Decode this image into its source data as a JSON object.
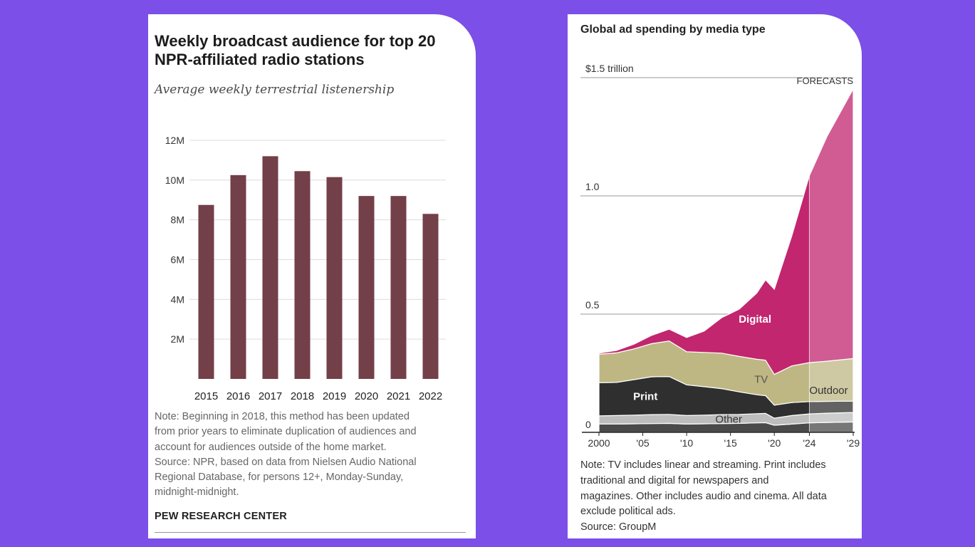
{
  "left_card": {
    "title": "Weekly broadcast audience for top 20 NPR-affiliated radio stations",
    "title_lines": [
      "Weekly broadcast audience for top 20",
      "NPR-affiliated radio stations"
    ],
    "subtitle": "Average weekly terrestrial listenership",
    "note_lines": [
      "Note: Beginning in 2018, this method has been updated",
      "from prior years to eliminate duplication of audiences and",
      "account for audiences outside of the home market.",
      "Source: NPR, based on data from Nielsen Audio National",
      "Regional Database, for persons 12+, Monday-Sunday,",
      "midnight-midnight."
    ],
    "brand": "PEW RESEARCH CENTER"
  },
  "right_card": {
    "title": "Global ad spending by media type",
    "note_lines": [
      "Note: TV includes linear and streaming. Print includes",
      "traditional and digital for newspapers and",
      "magazines. Other includes audio and cinema. All data",
      "exclude political ads.",
      "Source: GroupM"
    ]
  },
  "chart_data": [
    {
      "type": "bar",
      "categories": [
        "2015",
        "2016",
        "2017",
        "2018",
        "2019",
        "2020",
        "2021",
        "2022"
      ],
      "values": [
        8.75,
        10.25,
        11.2,
        10.45,
        10.15,
        9.2,
        9.2,
        8.3
      ],
      "ylim": [
        0,
        12
      ],
      "yticks": [
        2,
        4,
        6,
        8,
        10,
        12
      ],
      "ytick_labels": [
        "2M",
        "4M",
        "6M",
        "8M",
        "10M",
        "12M"
      ],
      "grid": true,
      "bar_color": "#733f48"
    },
    {
      "type": "area",
      "stacked": true,
      "x": [
        2000,
        2002,
        2004,
        2006,
        2008,
        2010,
        2012,
        2014,
        2016,
        2018,
        2019,
        2020,
        2022,
        2024,
        2026,
        2029
      ],
      "ylim": [
        0,
        1.5
      ],
      "yticks": [
        0,
        0.5,
        1.0,
        1.5
      ],
      "ytick_labels": [
        "0",
        "0.5",
        "1.0",
        "$1.5 trillion"
      ],
      "xtick_values": [
        2000,
        2005,
        2010,
        2015,
        2020,
        2024,
        2029
      ],
      "xtick_labels": [
        "2000",
        "'05",
        "'10",
        "'15",
        "'20",
        "'24",
        "'29"
      ],
      "forecast_start": 2024,
      "forecast_label": "FORECASTS",
      "series": [
        {
          "name": "Outdoor",
          "label": "Outdoor",
          "color": "#4a4a4a",
          "values": [
            0.035,
            0.035,
            0.036,
            0.037,
            0.038,
            0.035,
            0.036,
            0.037,
            0.038,
            0.04,
            0.041,
            0.03,
            0.035,
            0.04,
            0.042,
            0.044
          ]
        },
        {
          "name": "Other",
          "label": "Other",
          "color": "#bdbdbd",
          "values": [
            0.035,
            0.036,
            0.037,
            0.038,
            0.038,
            0.036,
            0.037,
            0.038,
            0.038,
            0.039,
            0.039,
            0.03,
            0.036,
            0.038,
            0.039,
            0.04
          ]
        },
        {
          "name": "Print",
          "label": "Print",
          "color": "#2f2f2f",
          "values": [
            0.14,
            0.14,
            0.15,
            0.16,
            0.16,
            0.13,
            0.12,
            0.11,
            0.095,
            0.08,
            0.075,
            0.055,
            0.055,
            0.052,
            0.05,
            0.048
          ]
        },
        {
          "name": "TV",
          "label": "TV",
          "color": "#beb783",
          "values": [
            0.12,
            0.125,
            0.13,
            0.14,
            0.15,
            0.14,
            0.145,
            0.15,
            0.15,
            0.15,
            0.15,
            0.13,
            0.155,
            0.165,
            0.17,
            0.18
          ]
        },
        {
          "name": "Digital",
          "label": "Digital",
          "color": "#c1266f",
          "values": [
            0.005,
            0.01,
            0.02,
            0.035,
            0.05,
            0.06,
            0.09,
            0.15,
            0.2,
            0.28,
            0.34,
            0.36,
            0.55,
            0.79,
            0.95,
            1.14
          ]
        }
      ]
    }
  ]
}
